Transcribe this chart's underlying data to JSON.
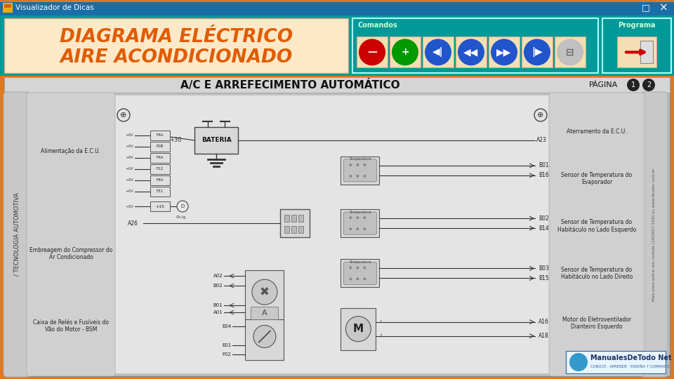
{
  "title_bar_text": "Visualizador de Dicas",
  "title_bar_bg": "#1a6ea8",
  "outer_bg": "#e07820",
  "toolbar_bg": "#009999",
  "header_bg": "#fde9c8",
  "header_text_line1": "DIAGRAMA ELÉCTRICO",
  "header_text_line2": "AIRE ACONDICIONADO",
  "header_text_color": "#e05c00",
  "comandos_label": "Comandos",
  "programa_label": "Programa",
  "diagram_header_text": "A/C E ARREFECIMENTO AUTOMÁTICO",
  "diagram_header_pagina": "PÁGINA",
  "vertical_text": "/ TECNOLOGIA AUTOMOTIVA",
  "watermark_text": "Mais erros entrar em contato (19)3827-3330 ou www.dicatec.com.br",
  "left_labels": [
    "Alimentação da E.C.U.",
    "Embreagem do Compressor do\nAr Condicionado",
    "Caixa de Relés e Fusíveis do\nVão do Motor - BSM"
  ],
  "right_labels": [
    "Aterramento da E.C.U.",
    "Sensor de Temperatura do\nEvaporador",
    "Sensor de Temperatura do\nHabitáculo no Lado Esquerdo",
    "Sensor de Temperatura do\nHabitáculo no Lado Direito",
    "Motor do Eletroventilador\nDianteiro Esquerdo"
  ],
  "logo_text": "ManualesDeTodo Net",
  "logo_subtext": "CONOCE · APRENDE · ENSEÑA Y COMPARTE",
  "fig_width": 9.6,
  "fig_height": 5.4,
  "dpi": 100
}
